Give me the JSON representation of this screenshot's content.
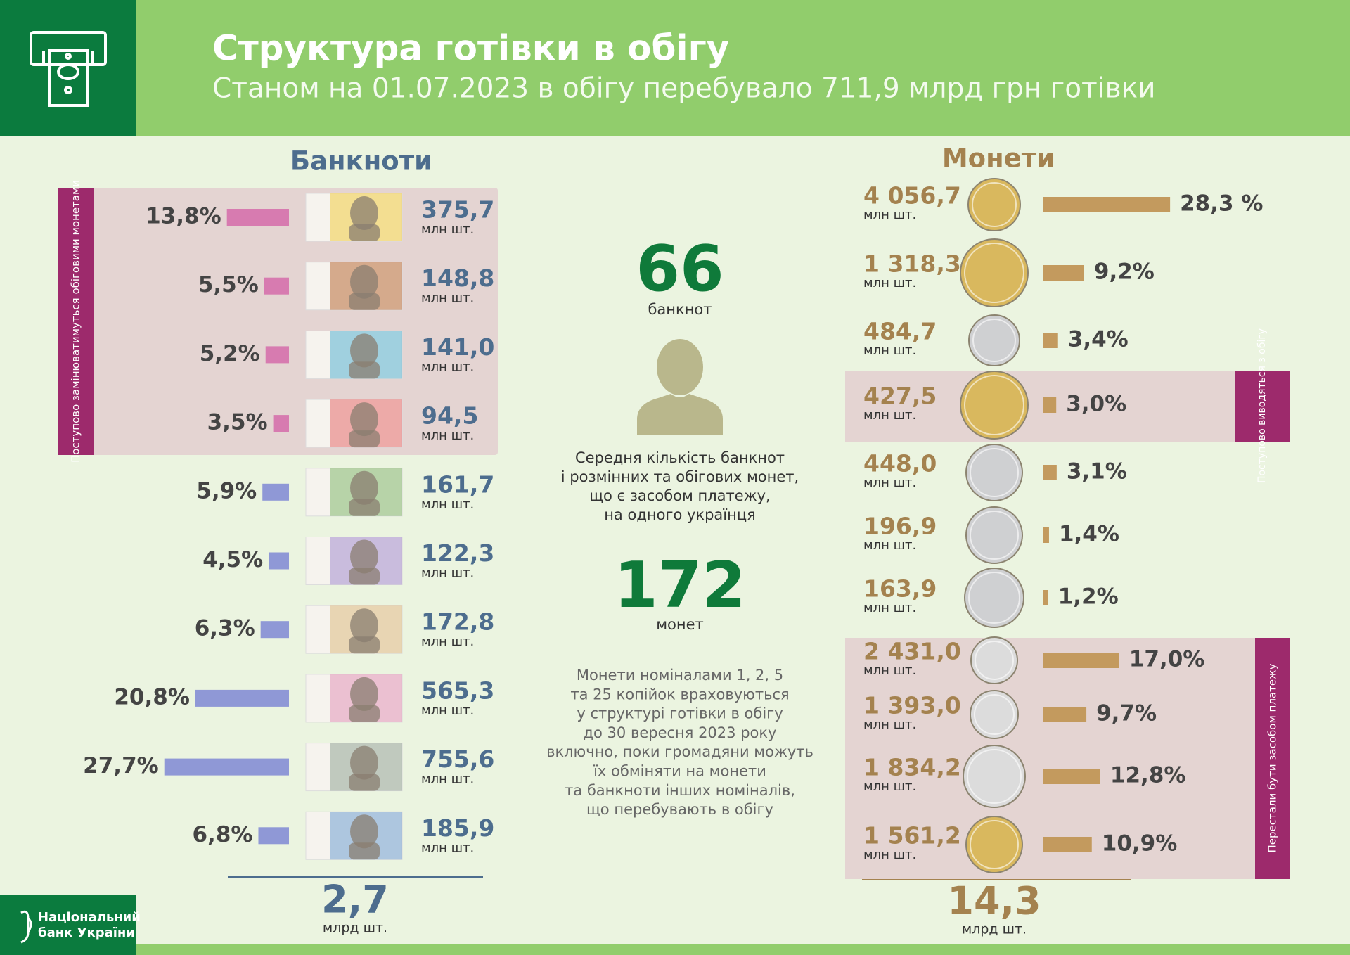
{
  "header": {
    "title": "Структура готівки в обігу",
    "subtitle": "Станом на 01.07.2023 в обігу перебувало 711,9 млрд грн готівки"
  },
  "logo": {
    "line1": "Національний",
    "line2": "банк України"
  },
  "banknotes": {
    "heading": "Банкноти",
    "group_label": "Поступово замінюватимуться обіговими монетами",
    "unit": "млн шт.",
    "items": [
      {
        "share": 13.8,
        "share_label": "13,8%",
        "count": "375,7",
        "color": "#d77bb0"
      },
      {
        "share": 5.5,
        "share_label": "5,5%",
        "count": "148,8",
        "color": "#d77bb0"
      },
      {
        "share": 5.2,
        "share_label": "5,2%",
        "count": "141,0",
        "color": "#d77bb0"
      },
      {
        "share": 3.5,
        "share_label": "3,5%",
        "count": "94,5",
        "color": "#d77bb0"
      },
      {
        "share": 5.9,
        "share_label": "5,9%",
        "count": "161,7",
        "color": "#8f98d6"
      },
      {
        "share": 4.5,
        "share_label": "4,5%",
        "count": "122,3",
        "color": "#8f98d6"
      },
      {
        "share": 6.3,
        "share_label": "6,3%",
        "count": "172,8",
        "color": "#8f98d6"
      },
      {
        "share": 20.8,
        "share_label": "20,8%",
        "count": "565,3",
        "color": "#8f98d6"
      },
      {
        "share": 27.7,
        "share_label": "27,7%",
        "count": "755,6",
        "color": "#8f98d6"
      },
      {
        "share": 6.8,
        "share_label": "6,8%",
        "count": "185,9",
        "color": "#8f98d6"
      }
    ],
    "total": "2,7",
    "total_unit": "млрд шт."
  },
  "center": {
    "banknotes_per_person": "66",
    "banknotes_word": "банкнот",
    "caption": [
      "Середня кількість банкнот",
      "і розмінних та обігових монет,",
      "що є засобом платежу,",
      "на одного українця"
    ],
    "coins_per_person": "172",
    "coins_word": "монет",
    "note": [
      "Монети  номіналами 1, 2, 5",
      "та 25 копійок враховуються",
      "у структурі готівки в обігу",
      "до 30 вересня 2023 року",
      "включно, поки громадяни можуть",
      "їх обміняти на монети",
      "та банкноти інших номіналів,",
      "що перебувають в обігу"
    ]
  },
  "coins": {
    "heading": "Монети",
    "bar_color": "#c39a5e",
    "unit": "млн шт.",
    "withdrawn_label": "Поступово виводяться з обігу",
    "expired_label": "Перестали бути засобом платежу",
    "items": [
      {
        "share": 28.3,
        "share_label": "28,3 %",
        "count": "4 056,7",
        "color": "#d9b85e"
      },
      {
        "share": 9.2,
        "share_label": "9,2%",
        "count": "1 318,3",
        "color": "#d9b85e"
      },
      {
        "share": 3.4,
        "share_label": "3,4%",
        "count": "484,7",
        "color": "#cfd0d2"
      },
      {
        "share": 3.0,
        "share_label": "3,0%",
        "count": "427,5",
        "color": "#d9b85e"
      },
      {
        "share": 3.1,
        "share_label": "3,1%",
        "count": "448,0",
        "color": "#cfd0d2"
      },
      {
        "share": 1.4,
        "share_label": "1,4%",
        "count": "196,9",
        "color": "#cfd0d2"
      },
      {
        "share": 1.2,
        "share_label": "1,2%",
        "count": "163,9",
        "color": "#cfd0d2"
      },
      {
        "share": 17.0,
        "share_label": "17,0%",
        "count": "2 431,0",
        "color": "#dcdcdc"
      },
      {
        "share": 9.7,
        "share_label": "9,7%",
        "count": "1 393,0",
        "color": "#dcdcdc"
      },
      {
        "share": 12.8,
        "share_label": "12,8%",
        "count": "1 834,2",
        "color": "#dcdcdc"
      },
      {
        "share": 10.9,
        "share_label": "10,9%",
        "count": "1 561,2",
        "color": "#d9b85e"
      }
    ],
    "total": "14,3",
    "total_unit": "млрд шт."
  }
}
